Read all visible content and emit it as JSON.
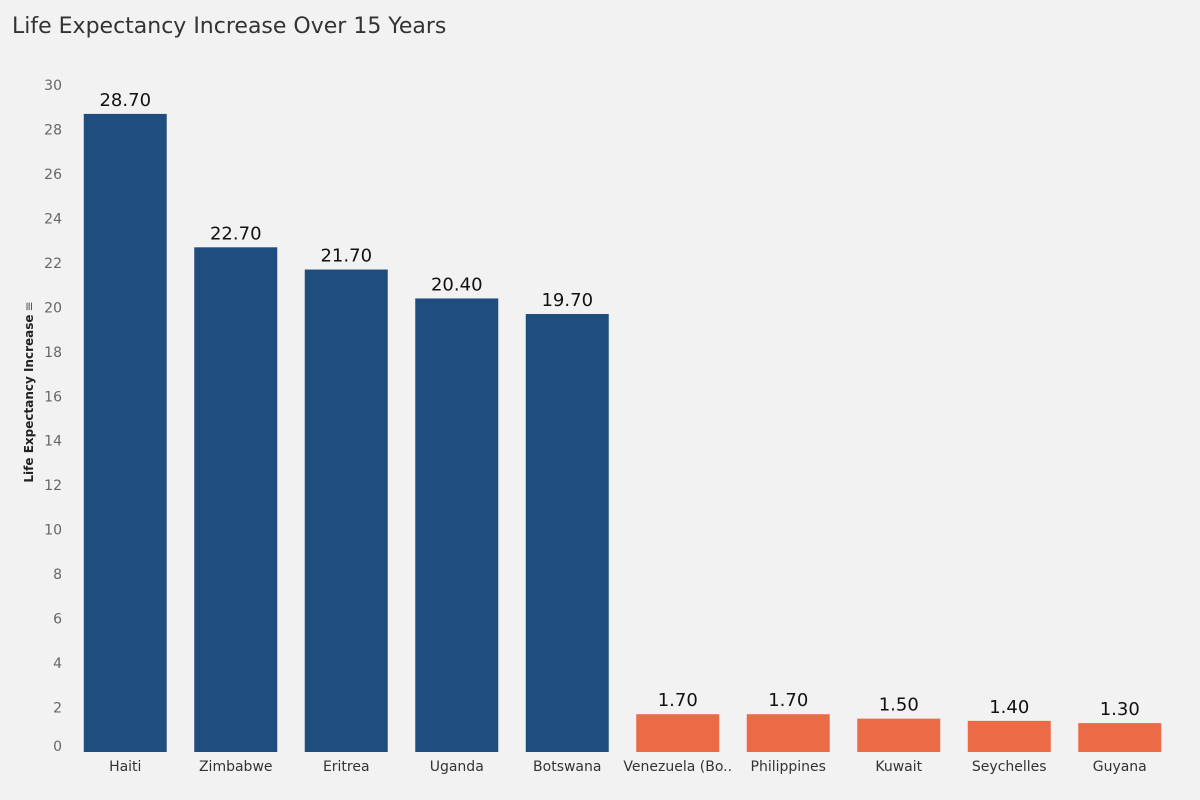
{
  "title": "Life Expectancy Increase Over 15 Years",
  "chart_data": {
    "type": "bar",
    "title": "Life Expectancy Increase Over 15 Years",
    "xlabel": "",
    "ylabel": "Life Expectancy Increase",
    "ylim": [
      0,
      30
    ],
    "yticks": [
      0,
      2,
      4,
      6,
      8,
      10,
      12,
      14,
      16,
      18,
      20,
      22,
      24,
      26,
      28,
      30
    ],
    "grid": false,
    "categories": [
      "Haiti",
      "Zimbabwe",
      "Eritrea",
      "Uganda",
      "Botswana",
      "Venezuela (Bo..",
      "Philippines",
      "Kuwait",
      "Seychelles",
      "Guyana"
    ],
    "values": [
      28.7,
      22.7,
      21.7,
      20.4,
      19.7,
      1.7,
      1.7,
      1.5,
      1.4,
      1.3
    ],
    "value_labels": [
      "28.70",
      "22.70",
      "21.70",
      "20.40",
      "19.70",
      "1.70",
      "1.70",
      "1.50",
      "1.40",
      "1.30"
    ],
    "colors": {
      "top": "#1f4e7e",
      "bottom": "#eb6b47"
    },
    "bar_groups": [
      "top",
      "top",
      "top",
      "top",
      "top",
      "bottom",
      "bottom",
      "bottom",
      "bottom",
      "bottom"
    ]
  }
}
